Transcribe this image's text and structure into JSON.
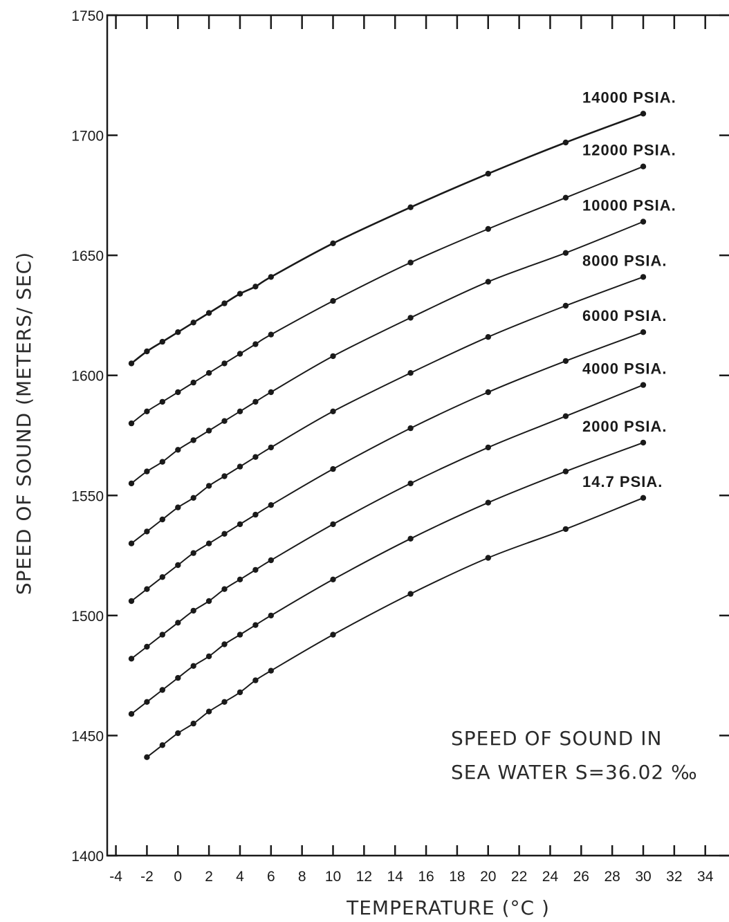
{
  "chart_data": {
    "type": "line",
    "xlabel": "TEMPERATURE (°C )",
    "ylabel": "SPEED OF SOUND (METERS/ SEC)",
    "xlim": [
      -4,
      36
    ],
    "ylim": [
      1400,
      1750
    ],
    "x_ticks": [
      -4,
      -2,
      0,
      2,
      4,
      6,
      8,
      10,
      12,
      14,
      16,
      18,
      20,
      22,
      24,
      26,
      28,
      30,
      32,
      34
    ],
    "x_tick_labels": [
      "-4",
      "-2",
      "0",
      "2",
      "4",
      "6",
      "8",
      "10",
      "12",
      "14",
      "16",
      "18",
      "20",
      "22",
      "24",
      "26",
      "28",
      "30",
      "32",
      "34"
    ],
    "y_ticks": [
      1400,
      1450,
      1500,
      1550,
      1600,
      1650,
      1700,
      1750
    ],
    "y_tick_labels": [
      "1400",
      "1450",
      "1500",
      "1550",
      "1600",
      "1650",
      "1700",
      "1750"
    ],
    "grid": false,
    "annotation_lines": [
      "SPEED OF SOUND IN",
      "SEA WATER S=36.02 ‰"
    ],
    "series": [
      {
        "name": "14.7 PSIA.",
        "x": [
          -2,
          -1,
          0,
          1,
          2,
          3,
          4,
          5,
          6,
          10,
          15,
          20,
          25,
          30
        ],
        "y": [
          1441,
          1446,
          1451,
          1455,
          1460,
          1464,
          1468,
          1473,
          1477,
          1492,
          1509,
          1524,
          1536,
          1549
        ]
      },
      {
        "name": "2000 PSIA.",
        "x": [
          -3,
          -2,
          -1,
          0,
          1,
          2,
          3,
          4,
          5,
          6,
          10,
          15,
          20,
          25,
          30
        ],
        "y": [
          1459,
          1464,
          1469,
          1474,
          1479,
          1483,
          1488,
          1492,
          1496,
          1500,
          1515,
          1532,
          1547,
          1560,
          1572
        ]
      },
      {
        "name": "4000 PSIA.",
        "x": [
          -3,
          -2,
          -1,
          0,
          1,
          2,
          3,
          4,
          5,
          6,
          10,
          15,
          20,
          25,
          30
        ],
        "y": [
          1482,
          1487,
          1492,
          1497,
          1502,
          1506,
          1511,
          1515,
          1519,
          1523,
          1538,
          1555,
          1570,
          1583,
          1596
        ]
      },
      {
        "name": "6000 PSIA.",
        "x": [
          -3,
          -2,
          -1,
          0,
          1,
          2,
          3,
          4,
          5,
          6,
          10,
          15,
          20,
          25,
          30
        ],
        "y": [
          1506,
          1511,
          1516,
          1521,
          1526,
          1530,
          1534,
          1538,
          1542,
          1546,
          1561,
          1578,
          1593,
          1606,
          1618
        ]
      },
      {
        "name": "8000 PSIA.",
        "x": [
          -3,
          -2,
          -1,
          0,
          1,
          2,
          3,
          4,
          5,
          6,
          10,
          15,
          20,
          25,
          30
        ],
        "y": [
          1530,
          1535,
          1540,
          1545,
          1549,
          1554,
          1558,
          1562,
          1566,
          1570,
          1585,
          1601,
          1616,
          1629,
          1641
        ]
      },
      {
        "name": "10000 PSIA.",
        "x": [
          -3,
          -2,
          -1,
          0,
          1,
          2,
          3,
          4,
          5,
          6,
          10,
          15,
          20,
          25,
          30
        ],
        "y": [
          1555,
          1560,
          1564,
          1569,
          1573,
          1577,
          1581,
          1585,
          1589,
          1593,
          1608,
          1624,
          1639,
          1651,
          1664
        ]
      },
      {
        "name": "12000 PSIA.",
        "x": [
          -3,
          -2,
          -1,
          0,
          1,
          2,
          3,
          4,
          5,
          6,
          10,
          15,
          20,
          25,
          30
        ],
        "y": [
          1580,
          1585,
          1589,
          1593,
          1597,
          1601,
          1605,
          1609,
          1613,
          1617,
          1631,
          1647,
          1661,
          1674,
          1687
        ]
      },
      {
        "name": "14000 PSIA.",
        "x": [
          -3,
          -2,
          -1,
          0,
          1,
          2,
          3,
          4,
          5,
          6,
          10,
          15,
          20,
          25,
          30
        ],
        "y": [
          1605,
          1610,
          1614,
          1618,
          1622,
          1626,
          1630,
          1634,
          1637,
          1641,
          1655,
          1670,
          1684,
          1697,
          1709
        ]
      }
    ]
  }
}
